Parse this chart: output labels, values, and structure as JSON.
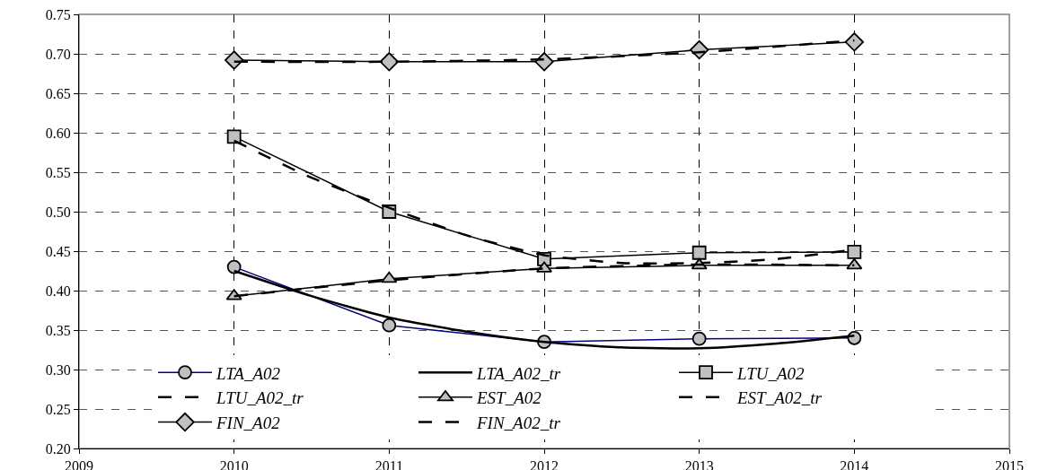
{
  "chart_data": {
    "type": "line",
    "xlim": [
      2009,
      2015
    ],
    "xticks": [
      2009,
      2010,
      2011,
      2012,
      2013,
      2014,
      2015
    ],
    "ylim": [
      0.2,
      0.75
    ],
    "yticks": [
      {
        "value": 0.2,
        "label": "0.20"
      },
      {
        "value": 0.25,
        "label": "0.25"
      },
      {
        "value": 0.3,
        "label": "0.30"
      },
      {
        "value": 0.35,
        "label": "0.35"
      },
      {
        "value": 0.4,
        "label": "0.40"
      },
      {
        "value": 0.45,
        "label": "0.45"
      },
      {
        "value": 0.5,
        "label": "0.50"
      },
      {
        "value": 0.55,
        "label": "0.55"
      },
      {
        "value": 0.6,
        "label": "0.60"
      },
      {
        "value": 0.65,
        "label": "0.65"
      },
      {
        "value": 0.7,
        "label": "0.70"
      },
      {
        "value": 0.75,
        "label": "0.75"
      }
    ],
    "grid": true,
    "legend": "bottom",
    "series": [
      {
        "name": "LTA_A02",
        "color": "#000080",
        "marker": "circle",
        "line_style": "solid",
        "x": [
          2010,
          2011,
          2012,
          2013,
          2014
        ],
        "values": [
          0.43,
          0.356,
          0.335,
          0.339,
          0.34
        ]
      },
      {
        "name": "LTA_A02_tr",
        "color": "#000000",
        "marker": "none",
        "line_style": "solid",
        "x": [
          2010,
          2010.5,
          2011,
          2011.5,
          2012,
          2012.5,
          2013,
          2013.5,
          2014
        ],
        "values": [
          0.425,
          0.393,
          0.366,
          0.348,
          0.335,
          0.328,
          0.327,
          0.333,
          0.343
        ]
      },
      {
        "name": "LTU_A02",
        "color": "#000000",
        "marker": "square",
        "line_style": "solid",
        "x": [
          2010,
          2011,
          2012,
          2013,
          2014
        ],
        "values": [
          0.595,
          0.5,
          0.44,
          0.448,
          0.449
        ]
      },
      {
        "name": "LTU_A02_tr",
        "color": "#000000",
        "marker": "none",
        "line_style": "dashed",
        "x": [
          2010,
          2010.5,
          2011,
          2011.5,
          2012,
          2012.5,
          2013,
          2013.5,
          2014
        ],
        "values": [
          0.59,
          0.543,
          0.505,
          0.47,
          0.445,
          0.435,
          0.435,
          0.44,
          0.452
        ]
      },
      {
        "name": "EST_A02",
        "color": "#000000",
        "marker": "triangle",
        "line_style": "solid",
        "x": [
          2010,
          2011,
          2012,
          2013,
          2014
        ],
        "values": [
          0.393,
          0.415,
          0.428,
          0.432,
          0.432
        ]
      },
      {
        "name": "EST_A02_tr",
        "color": "#000000",
        "marker": "none",
        "line_style": "dashed",
        "x": [
          2010,
          2011,
          2012,
          2013,
          2014
        ],
        "values": [
          0.393,
          0.413,
          0.428,
          0.433,
          0.432
        ]
      },
      {
        "name": "FIN_A02",
        "color": "#000000",
        "marker": "diamond",
        "line_style": "solid",
        "x": [
          2010,
          2011,
          2012,
          2013,
          2014
        ],
        "values": [
          0.692,
          0.69,
          0.69,
          0.705,
          0.715
        ]
      },
      {
        "name": "FIN_A02_tr",
        "color": "#000000",
        "marker": "none",
        "line_style": "dashed",
        "x": [
          2010,
          2011,
          2012,
          2013,
          2014
        ],
        "values": [
          0.69,
          0.69,
          0.693,
          0.702,
          0.717
        ]
      }
    ]
  }
}
